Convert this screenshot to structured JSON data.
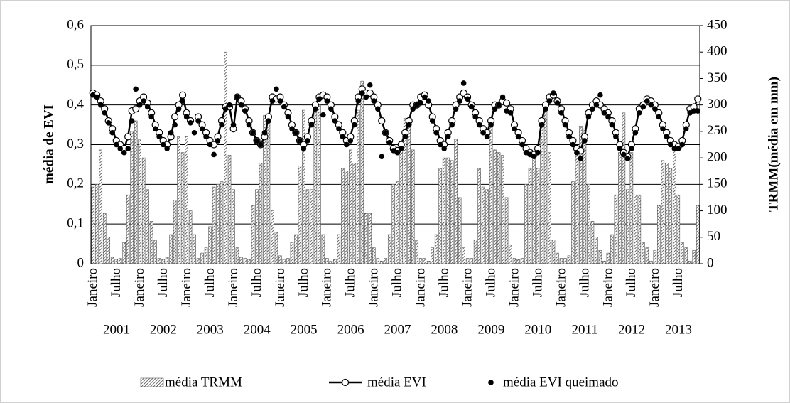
{
  "chart_data": {
    "type": "bar_line",
    "y_label": "média de EVI",
    "y2_label": "TRMM(média em mm)",
    "ylim": [
      0,
      0.6
    ],
    "yticks": [
      0,
      {
        "value": 0.1,
        "label": "0,1"
      },
      {
        "value": 0.2,
        "label": "0,2"
      },
      {
        "value": 0.3,
        "label": "0,3"
      },
      {
        "value": 0.4,
        "label": "0,4"
      },
      {
        "value": 0.5,
        "label": "0,5"
      },
      {
        "value": 0.6,
        "label": "0,6"
      }
    ],
    "y2lim": [
      0,
      450
    ],
    "y2ticks": [
      0,
      50,
      100,
      150,
      200,
      250,
      300,
      350,
      400,
      450
    ],
    "grid": true,
    "year_labels": [
      "2001",
      "2002",
      "2003",
      "2004",
      "2005",
      "2006",
      "2007",
      "2008",
      "2009",
      "2010",
      "2011",
      "2012",
      "2013"
    ],
    "categories": [
      "Janeiro",
      null,
      null,
      null,
      null,
      null,
      "Julho",
      null,
      null,
      null,
      null,
      null,
      "Janeiro",
      null,
      null,
      null,
      null,
      null,
      "Julho",
      null,
      null,
      null,
      null,
      null,
      "Janeiro",
      null,
      null,
      null,
      null,
      null,
      "Julho",
      null,
      null,
      null,
      null,
      null,
      "Janeiro",
      null,
      null,
      null,
      null,
      null,
      "Julho",
      null,
      null,
      null,
      null,
      null,
      "Janeiro",
      null,
      null,
      null,
      null,
      null,
      "Julho",
      null,
      null,
      null,
      null,
      null,
      "Janeiro",
      null,
      null,
      null,
      null,
      null,
      "Julho",
      null,
      null,
      null,
      null,
      null,
      "Janeiro",
      null,
      null,
      null,
      null,
      null,
      "Julho",
      null,
      null,
      null,
      null,
      null,
      "Janeiro",
      null,
      null,
      null,
      null,
      null,
      "Julho",
      null,
      null,
      null,
      null,
      null,
      "Janeiro",
      null,
      null,
      null,
      null,
      null,
      "Julho",
      null,
      null,
      null,
      null,
      null,
      "Janeiro",
      null,
      null,
      null,
      null,
      null,
      "Julho",
      null,
      null,
      null,
      null,
      null,
      "Janeiro",
      null,
      null,
      null,
      null,
      null,
      "Julho",
      null,
      null,
      null,
      null,
      null,
      "Janeiro",
      null,
      null,
      null,
      null,
      null,
      "Julho",
      null,
      null,
      null,
      null,
      null,
      "Janeiro",
      null,
      null,
      null,
      null,
      null,
      "Julho",
      null,
      null,
      null,
      null,
      null
    ],
    "series": [
      {
        "name": "média TRMM",
        "kind": "bar",
        "axis": "y2",
        "color": "#555555",
        "values": [
          145,
          150,
          215,
          95,
          50,
          12,
          8,
          10,
          40,
          130,
          250,
          270,
          235,
          200,
          140,
          80,
          45,
          10,
          8,
          12,
          55,
          120,
          240,
          210,
          240,
          100,
          55,
          10,
          20,
          30,
          70,
          145,
          150,
          155,
          400,
          205,
          140,
          30,
          12,
          10,
          8,
          110,
          140,
          190,
          280,
          280,
          100,
          60,
          15,
          8,
          10,
          40,
          55,
          185,
          290,
          140,
          140,
          300,
          300,
          55,
          10,
          5,
          8,
          55,
          180,
          175,
          215,
          190,
          290,
          345,
          95,
          95,
          30,
          10,
          5,
          10,
          55,
          150,
          155,
          225,
          275,
          260,
          215,
          45,
          10,
          10,
          5,
          30,
          55,
          180,
          200,
          200,
          195,
          235,
          125,
          30,
          10,
          10,
          45,
          180,
          145,
          140,
          270,
          215,
          210,
          205,
          125,
          35,
          10,
          8,
          10,
          150,
          180,
          210,
          180,
          260,
          290,
          210,
          45,
          20,
          10,
          10,
          15,
          155,
          215,
          260,
          255,
          150,
          80,
          50,
          25,
          5,
          20,
          55,
          130,
          210,
          285,
          140,
          210,
          130,
          130,
          40,
          30,
          5,
          25,
          110,
          195,
          190,
          180,
          215,
          130,
          40,
          30,
          5,
          25,
          110
        ]
      },
      {
        "name": "média EVI",
        "kind": "line",
        "color": "#000000",
        "values": [
          0.43,
          0.425,
          0.41,
          0.39,
          0.36,
          0.34,
          0.31,
          0.3,
          0.29,
          0.32,
          0.385,
          0.39,
          0.41,
          0.42,
          0.405,
          0.38,
          0.35,
          0.33,
          0.31,
          0.3,
          0.32,
          0.37,
          0.4,
          0.425,
          0.38,
          0.36,
          null,
          0.37,
          0.35,
          0.33,
          0.31,
          0.3,
          0.32,
          0.36,
          0.395,
          0.395,
          0.34,
          0.42,
          0.41,
          0.39,
          0.36,
          0.33,
          0.31,
          0.3,
          0.32,
          0.37,
          0.42,
          0.415,
          0.42,
          0.4,
          0.38,
          0.35,
          0.33,
          0.31,
          0.3,
          0.32,
          0.36,
          0.4,
          0.42,
          0.425,
          0.42,
          0.4,
          0.37,
          0.35,
          0.33,
          0.31,
          0.32,
          0.36,
          0.42,
          0.44,
          0.43,
          0.43,
          0.42,
          0.4,
          0.36,
          0.33,
          0.31,
          0.29,
          0.285,
          0.3,
          0.33,
          0.36,
          0.4,
          0.4,
          0.42,
          0.425,
          0.4,
          0.37,
          0.34,
          0.31,
          0.3,
          0.33,
          0.36,
          0.4,
          0.42,
          0.43,
          0.42,
          0.4,
          0.38,
          0.36,
          0.34,
          0.33,
          0.36,
          0.4,
          0.4,
          0.41,
          0.405,
          0.39,
          0.35,
          0.33,
          0.31,
          0.29,
          0.28,
          0.275,
          0.29,
          0.36,
          0.4,
          0.42,
          0.425,
          0.41,
          0.39,
          0.36,
          0.33,
          0.31,
          0.29,
          0.285,
          0.32,
          0.38,
          0.4,
          0.41,
          0.4,
          0.39,
          0.38,
          0.36,
          0.33,
          0.3,
          0.28,
          0.27,
          0.3,
          0.34,
          0.39,
          0.4,
          0.415,
          0.41,
          0.4,
          0.38,
          0.35,
          0.33,
          0.31,
          0.3,
          0.295,
          0.31,
          0.35,
          0.39,
          0.395,
          0.415
        ]
      },
      {
        "name": "média EVI queimado",
        "kind": "dots",
        "color": "#000000",
        "values": [
          0.425,
          0.42,
          0.4,
          0.38,
          0.355,
          0.33,
          0.3,
          0.29,
          0.28,
          0.29,
          0.36,
          0.44,
          0.4,
          0.41,
          0.395,
          0.37,
          0.34,
          0.32,
          0.3,
          0.29,
          0.33,
          0.35,
          0.39,
          0.41,
          0.37,
          0.355,
          0.33,
          0.36,
          0.34,
          0.32,
          0.3,
          0.275,
          0.31,
          0.35,
          0.39,
          0.4,
          0.35,
          0.42,
          0.4,
          0.385,
          0.35,
          0.33,
          0.31,
          0.3,
          0.33,
          0.36,
          0.41,
          0.44,
          0.41,
          0.395,
          0.37,
          0.34,
          0.33,
          0.31,
          0.29,
          0.31,
          0.35,
          0.39,
          0.415,
          0.375,
          0.41,
          0.39,
          0.36,
          0.34,
          0.32,
          0.3,
          0.31,
          0.35,
          0.41,
          0.43,
          0.42,
          0.45,
          0.41,
          0.39,
          0.27,
          0.33,
          0.305,
          0.285,
          0.28,
          0.29,
          0.32,
          0.35,
          0.39,
          0.4,
          0.405,
          0.42,
          0.41,
          0.36,
          0.33,
          0.3,
          0.29,
          0.32,
          0.35,
          0.39,
          0.41,
          0.455,
          0.415,
          0.395,
          0.37,
          0.35,
          0.33,
          0.32,
          0.35,
          0.39,
          0.4,
          0.42,
          0.385,
          0.38,
          0.34,
          0.32,
          0.3,
          0.28,
          0.275,
          0.27,
          0.28,
          0.35,
          0.39,
          0.41,
          0.43,
          0.405,
          0.38,
          0.35,
          0.32,
          0.3,
          0.28,
          0.265,
          0.31,
          0.37,
          0.39,
          0.4,
          0.425,
          0.38,
          0.37,
          0.35,
          0.32,
          0.29,
          0.275,
          0.265,
          0.29,
          0.33,
          0.38,
          0.395,
          0.41,
          0.4,
          0.39,
          0.37,
          0.34,
          0.32,
          0.3,
          0.29,
          0.29,
          0.3,
          0.34,
          0.38,
          0.385,
          0.385
        ]
      }
    ]
  }
}
